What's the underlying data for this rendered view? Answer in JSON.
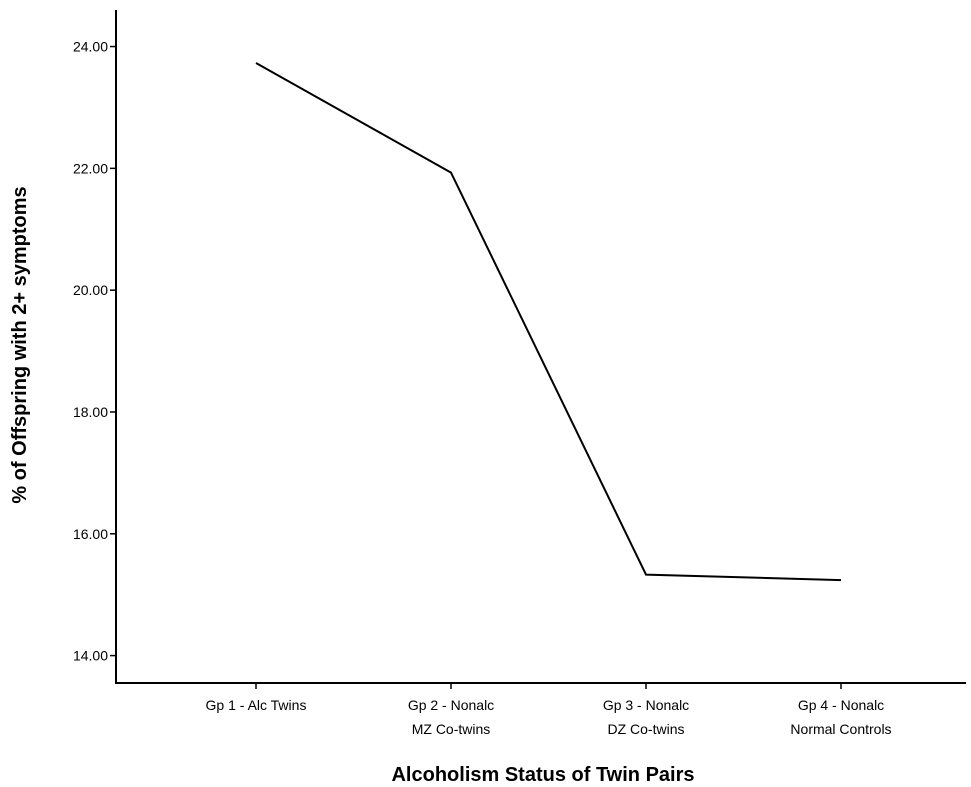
{
  "chart_data": {
    "type": "line",
    "title": "",
    "xlabel": "Alcoholism Status of Twin Pairs",
    "ylabel": "% of Offspring with 2+ symptoms",
    "categories": [
      [
        "Gp 1 - Alc Twins"
      ],
      [
        "Gp 2 - Nonalc",
        "MZ Co-twins"
      ],
      [
        "Gp 3 - Nonalc",
        "DZ Co-twins"
      ],
      [
        "Gp 4 - Nonalc",
        "Normal Controls"
      ]
    ],
    "series": [
      {
        "values": [
          23.73,
          21.93,
          15.33,
          15.24
        ]
      }
    ],
    "ylim": [
      13.55,
      24.6
    ],
    "yticks": [
      "14.00",
      "16.00",
      "18.00",
      "20.00",
      "22.00",
      "24.00"
    ],
    "grid": false,
    "legend": "none",
    "line_color": "#000000"
  }
}
